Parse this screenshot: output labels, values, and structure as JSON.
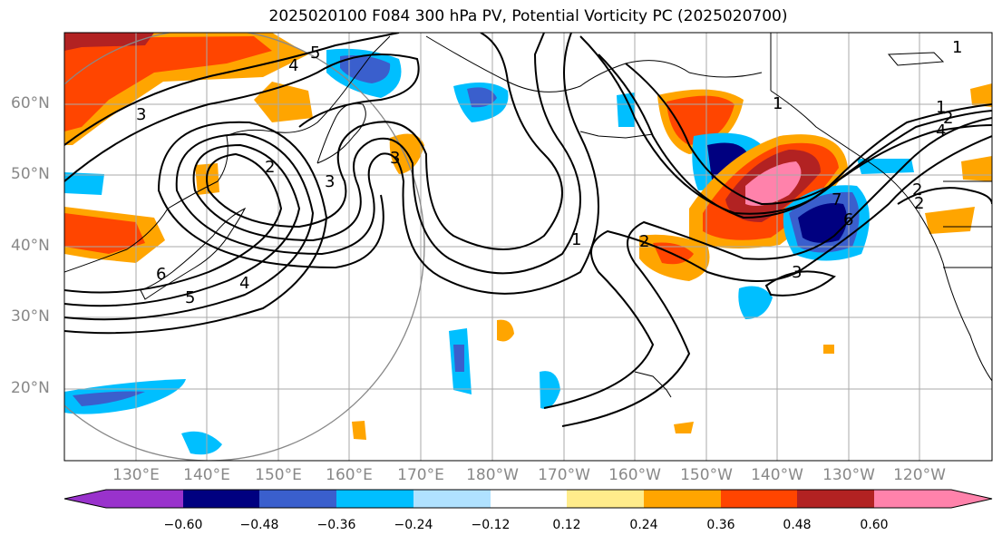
{
  "title": "2025020100 F084 300 hPa PV, Potential Vorticity PC (2025020700)",
  "lat_labels": [
    "60°N",
    "50°N",
    "40°N",
    "30°N",
    "20°N"
  ],
  "lon_labels": [
    "130°E",
    "140°E",
    "150°E",
    "160°E",
    "170°E",
    "180°W",
    "170°W",
    "160°W",
    "150°W",
    "140°W",
    "130°W",
    "120°W"
  ],
  "colorbar": {
    "ticks": [
      "−0.60",
      "−0.48",
      "−0.36",
      "−0.24",
      "−0.12",
      "0.12",
      "0.24",
      "0.36",
      "0.48",
      "0.60"
    ],
    "colors": [
      "#9932cc",
      "#000080",
      "#3a5fcd",
      "#00bfff",
      "#b0e2ff",
      "#ffffff",
      "#ffec8b",
      "#ffa500",
      "#ff4500",
      "#b22222",
      "#ff82ab"
    ]
  },
  "contour_labels": [
    "4",
    "5",
    "3",
    "2",
    "3",
    "3",
    "4",
    "5",
    "6",
    "1",
    "2",
    "1",
    "2",
    "1",
    "2",
    "4",
    "2",
    "3",
    "7",
    "6",
    "3"
  ]
}
